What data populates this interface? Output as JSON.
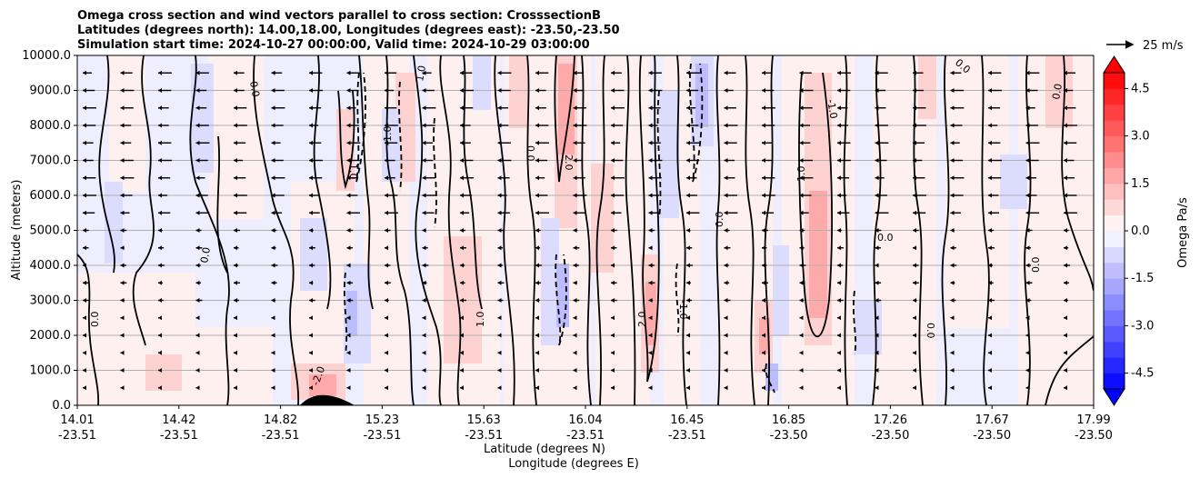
{
  "chart_data": {
    "type": "contour-quiver",
    "title_lines": [
      "Omega cross section and wind vectors parallel to cross section: CrosssectionB",
      "Latitudes (degrees north): 14.00,18.00, Longitudes (degrees east): -23.50,-23.50",
      "Simulation start time: 2024-10-27 00:00:00, Valid time: 2024-10-29 03:00:00"
    ],
    "ylabel": "Altitude (meters)",
    "xlabel_lat": "Latitude (degrees N)",
    "xlabel_lon": "Longitude (degrees E)",
    "ylim": [
      0,
      10000
    ],
    "y_ticks": [
      "0.0",
      "1000.0",
      "2000.0",
      "3000.0",
      "4000.0",
      "5000.0",
      "6000.0",
      "7000.0",
      "8000.0",
      "9000.0",
      "10000.0"
    ],
    "y_tick_values": [
      0,
      1000,
      2000,
      3000,
      4000,
      5000,
      6000,
      7000,
      8000,
      9000,
      10000
    ],
    "x_ticks": [
      {
        "lat": "14.01",
        "lon": "-23.51"
      },
      {
        "lat": "14.42",
        "lon": "-23.51"
      },
      {
        "lat": "14.82",
        "lon": "-23.51"
      },
      {
        "lat": "15.23",
        "lon": "-23.51"
      },
      {
        "lat": "15.63",
        "lon": "-23.51"
      },
      {
        "lat": "16.04",
        "lon": "-23.51"
      },
      {
        "lat": "16.45",
        "lon": "-23.51"
      },
      {
        "lat": "16.85",
        "lon": "-23.50"
      },
      {
        "lat": "17.26",
        "lon": "-23.50"
      },
      {
        "lat": "17.67",
        "lon": "-23.50"
      },
      {
        "lat": "17.99",
        "lon": "-23.50"
      }
    ],
    "colorbar": {
      "label": "Omega Pa/s",
      "range": [
        -5.0,
        5.0
      ],
      "ticks": [
        "-4.5",
        "-3.0",
        "-1.5",
        "0.0",
        "1.5",
        "3.0",
        "4.5"
      ],
      "tick_values": [
        -4.5,
        -3.0,
        -1.5,
        0.0,
        1.5,
        3.0,
        4.5
      ],
      "negative_color": "#0000ff",
      "positive_color": "#ff0000",
      "neutral_color": "#ffffff"
    },
    "quiver_key": "25 m/s",
    "contour_levels": [
      -2.0,
      -1.0,
      0.0,
      1.0,
      2.0
    ],
    "contour_label_samples": [
      "0.0",
      "1.0",
      "-1.0",
      "2.0",
      "-2.0"
    ],
    "wind_direction": "southward (arrows point toward lower latitude)",
    "grid": true
  }
}
